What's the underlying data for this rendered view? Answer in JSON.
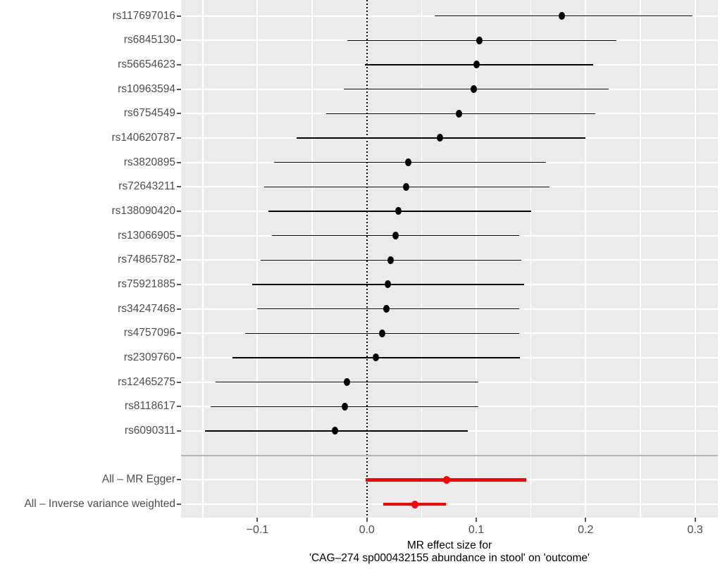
{
  "chart_data": {
    "type": "forest",
    "title": "",
    "xlabel_line1": "MR effect size for",
    "xlabel_line2": "'CAG–274 sp000432155 abundance in stool' on 'outcome'",
    "x_axis": {
      "range": [
        -0.17,
        0.321
      ],
      "major_ticks": [
        {
          "value": -0.1,
          "label": "−0.1"
        },
        {
          "value": 0.0,
          "label": "0.0"
        },
        {
          "value": 0.1,
          "label": "0.1"
        },
        {
          "value": 0.2,
          "label": "0.2"
        },
        {
          "value": 0.3,
          "label": "0.3"
        }
      ],
      "minor_gridlines": [
        -0.15,
        -0.05,
        0.05,
        0.15,
        0.25
      ]
    },
    "zero_line": 0.0,
    "legend_position": "none",
    "grid": true,
    "rows": [
      {
        "label": "rs117697016",
        "estimate": 0.178,
        "ci_low": 0.062,
        "ci_high": 0.298,
        "group": "snp"
      },
      {
        "label": "rs6845130",
        "estimate": 0.103,
        "ci_low": -0.018,
        "ci_high": 0.228,
        "group": "snp"
      },
      {
        "label": "rs56654623",
        "estimate": 0.1,
        "ci_low": -0.002,
        "ci_high": 0.207,
        "group": "snp"
      },
      {
        "label": "rs10963594",
        "estimate": 0.098,
        "ci_low": -0.021,
        "ci_high": 0.221,
        "group": "snp"
      },
      {
        "label": "rs6754549",
        "estimate": 0.084,
        "ci_low": -0.037,
        "ci_high": 0.209,
        "group": "snp"
      },
      {
        "label": "rs140620787",
        "estimate": 0.067,
        "ci_low": -0.064,
        "ci_high": 0.2,
        "group": "snp"
      },
      {
        "label": "rs3820895",
        "estimate": 0.038,
        "ci_low": -0.085,
        "ci_high": 0.164,
        "group": "snp"
      },
      {
        "label": "rs72643211",
        "estimate": 0.036,
        "ci_low": -0.094,
        "ci_high": 0.167,
        "group": "snp"
      },
      {
        "label": "rs138090420",
        "estimate": 0.029,
        "ci_low": -0.09,
        "ci_high": 0.15,
        "group": "snp"
      },
      {
        "label": "rs13066905",
        "estimate": 0.026,
        "ci_low": -0.087,
        "ci_high": 0.139,
        "group": "snp"
      },
      {
        "label": "rs74865782",
        "estimate": 0.022,
        "ci_low": -0.097,
        "ci_high": 0.141,
        "group": "snp"
      },
      {
        "label": "rs75921885",
        "estimate": 0.019,
        "ci_low": -0.105,
        "ci_high": 0.144,
        "group": "snp"
      },
      {
        "label": "rs34247468",
        "estimate": 0.018,
        "ci_low": -0.1,
        "ci_high": 0.139,
        "group": "snp"
      },
      {
        "label": "rs4757096",
        "estimate": 0.014,
        "ci_low": -0.111,
        "ci_high": 0.139,
        "group": "snp"
      },
      {
        "label": "rs2309760",
        "estimate": 0.008,
        "ci_low": -0.123,
        "ci_high": 0.14,
        "group": "snp"
      },
      {
        "label": "rs12465275",
        "estimate": -0.018,
        "ci_low": -0.138,
        "ci_high": 0.102,
        "group": "snp"
      },
      {
        "label": "rs8118617",
        "estimate": -0.02,
        "ci_low": -0.143,
        "ci_high": 0.102,
        "group": "snp"
      },
      {
        "label": "rs6090311",
        "estimate": -0.029,
        "ci_low": -0.148,
        "ci_high": 0.092,
        "group": "snp"
      },
      {
        "label": "All – MR Egger",
        "estimate": 0.073,
        "ci_low": -0.001,
        "ci_high": 0.146,
        "group": "all"
      },
      {
        "label": "All – Inverse variance weighted",
        "estimate": 0.044,
        "ci_low": 0.015,
        "ci_high": 0.072,
        "group": "all"
      }
    ],
    "colors": {
      "panel_background": "#EBEBEB",
      "gridline": "#FFFFFF",
      "snp_point": "#000000",
      "all_point": "#FF0000",
      "separator_line": "#B3B3B3",
      "axis_text": "#4D4D4D",
      "axis_title_text": "#000000",
      "zero_line": "#000000"
    }
  }
}
